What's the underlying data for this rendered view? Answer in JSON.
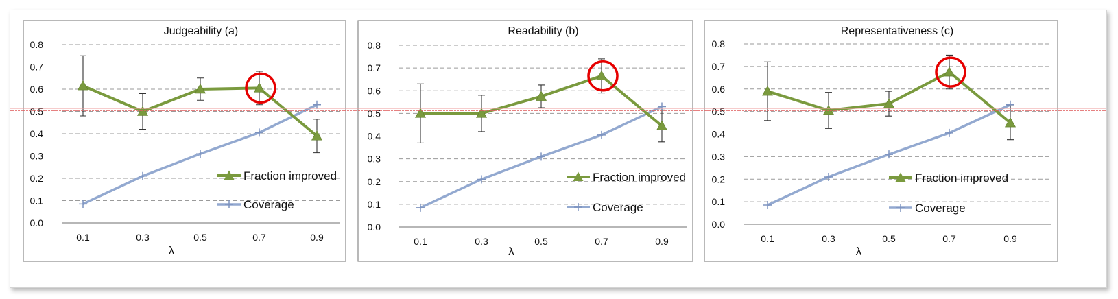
{
  "chart_data": [
    {
      "type": "line",
      "title": "Judgeability (a)",
      "xlabel": "λ",
      "ylabel": "",
      "categories": [
        "0.1",
        "0.3",
        "0.5",
        "0.7",
        "0.9"
      ],
      "y_ticks": [
        "0.0",
        "0.1",
        "0.2",
        "0.3",
        "0.4",
        "0.5",
        "0.6",
        "0.7",
        "0.8"
      ],
      "ylim": [
        0,
        0.8
      ],
      "reference_line": 0.51,
      "highlight": "0.7",
      "series": [
        {
          "name": "Fraction improved",
          "values": [
            0.615,
            0.5,
            0.6,
            0.605,
            0.39
          ],
          "error": [
            0.135,
            0.08,
            0.05,
            0.075,
            0.075
          ]
        },
        {
          "name": "Coverage",
          "values": [
            0.085,
            0.21,
            0.31,
            0.405,
            0.53
          ]
        }
      ],
      "legend": [
        "Fraction improved",
        "Coverage"
      ]
    },
    {
      "type": "line",
      "title": "Readability (b)",
      "xlabel": "λ",
      "ylabel": "",
      "categories": [
        "0.1",
        "0.3",
        "0.5",
        "0.7",
        "0.9"
      ],
      "y_ticks": [
        "0.0",
        "0.1",
        "0.2",
        "0.3",
        "0.4",
        "0.5",
        "0.6",
        "0.7",
        "0.8"
      ],
      "ylim": [
        0,
        0.8
      ],
      "reference_line": 0.51,
      "highlight": "0.7",
      "series": [
        {
          "name": "Fraction improved",
          "values": [
            0.5,
            0.5,
            0.575,
            0.665,
            0.445
          ],
          "error": [
            0.13,
            0.08,
            0.05,
            0.075,
            0.07
          ]
        },
        {
          "name": "Coverage",
          "values": [
            0.085,
            0.21,
            0.31,
            0.405,
            0.53
          ]
        }
      ],
      "legend": [
        "Fraction improved",
        "Coverage"
      ]
    },
    {
      "type": "line",
      "title": "Representativeness (c)",
      "xlabel": "λ",
      "ylabel": "",
      "categories": [
        "0.1",
        "0.3",
        "0.5",
        "0.7",
        "0.9"
      ],
      "y_ticks": [
        "0.0",
        "0.1",
        "0.2",
        "0.3",
        "0.4",
        "0.5",
        "0.6",
        "0.7",
        "0.8"
      ],
      "ylim": [
        0,
        0.8
      ],
      "reference_line": 0.51,
      "highlight": "0.7",
      "series": [
        {
          "name": "Fraction improved",
          "values": [
            0.59,
            0.505,
            0.535,
            0.675,
            0.45
          ],
          "error": [
            0.13,
            0.08,
            0.055,
            0.075,
            0.075
          ]
        },
        {
          "name": "Coverage",
          "values": [
            0.085,
            0.21,
            0.31,
            0.405,
            0.53
          ]
        }
      ],
      "legend": [
        "Fraction improved",
        "Coverage"
      ]
    }
  ],
  "colors": {
    "fraction": "#7a9a3e",
    "coverage": "#93a9d0",
    "reference": "#e06060",
    "highlight": "#e60000",
    "grid": "#9a9a9a",
    "axis": "#8c8c8c"
  }
}
